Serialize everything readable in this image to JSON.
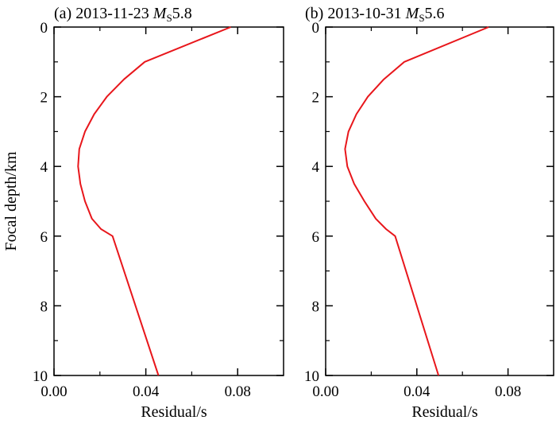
{
  "chart_data": [
    {
      "type": "line",
      "title_prefix": "(a) 2013-11-23 ",
      "title_mag_symbol": "M",
      "title_mag_sub": "S",
      "title_mag_value": "5.8",
      "xlabel": "Residual/s",
      "ylabel": "Focal depth/km",
      "xlim": [
        0,
        0.1
      ],
      "ylim": [
        10,
        0
      ],
      "y_inverted": true,
      "x_ticks": [
        0.0,
        0.04,
        0.08
      ],
      "x_tick_labels": [
        "0.00",
        "0.04",
        "0.08"
      ],
      "y_ticks": [
        0,
        2,
        4,
        6,
        8,
        10
      ],
      "y_tick_labels": [
        "0",
        "2",
        "4",
        "6",
        "8",
        "10"
      ],
      "line_color": "#e8161b",
      "series": [
        {
          "x": [
            0.077,
            0.0395,
            0.0305,
            0.023,
            0.0175,
            0.0135,
            0.011,
            0.0105,
            0.0115,
            0.0135,
            0.0165,
            0.0205,
            0.0255,
            0.0355,
            0.0455
          ],
          "y": [
            0,
            1,
            1.5,
            2,
            2.5,
            3,
            3.5,
            4,
            4.5,
            5,
            5.5,
            5.8,
            6,
            8,
            10
          ]
        }
      ]
    },
    {
      "type": "line",
      "title_prefix": "(b) 2013-10-31 ",
      "title_mag_symbol": "M",
      "title_mag_sub": "S",
      "title_mag_value": "5.6",
      "xlabel": "Residual/s",
      "xlim": [
        0,
        0.1
      ],
      "ylim": [
        10,
        0
      ],
      "y_inverted": true,
      "x_ticks": [
        0.0,
        0.04,
        0.08
      ],
      "x_tick_labels": [
        "0.00",
        "0.04",
        "0.08"
      ],
      "y_ticks": [
        0,
        2,
        4,
        6,
        8,
        10
      ],
      "y_tick_labels": [
        "0",
        "2",
        "4",
        "6",
        "8",
        "10"
      ],
      "line_color": "#e8161b",
      "series": [
        {
          "x": [
            0.0715,
            0.0345,
            0.0255,
            0.0185,
            0.0135,
            0.01,
            0.0085,
            0.0095,
            0.0125,
            0.017,
            0.022,
            0.0265,
            0.0305,
            0.04,
            0.0495
          ],
          "y": [
            0,
            1,
            1.5,
            2,
            2.5,
            3,
            3.5,
            4,
            4.5,
            5,
            5.5,
            5.8,
            6,
            8,
            10
          ]
        }
      ]
    }
  ]
}
